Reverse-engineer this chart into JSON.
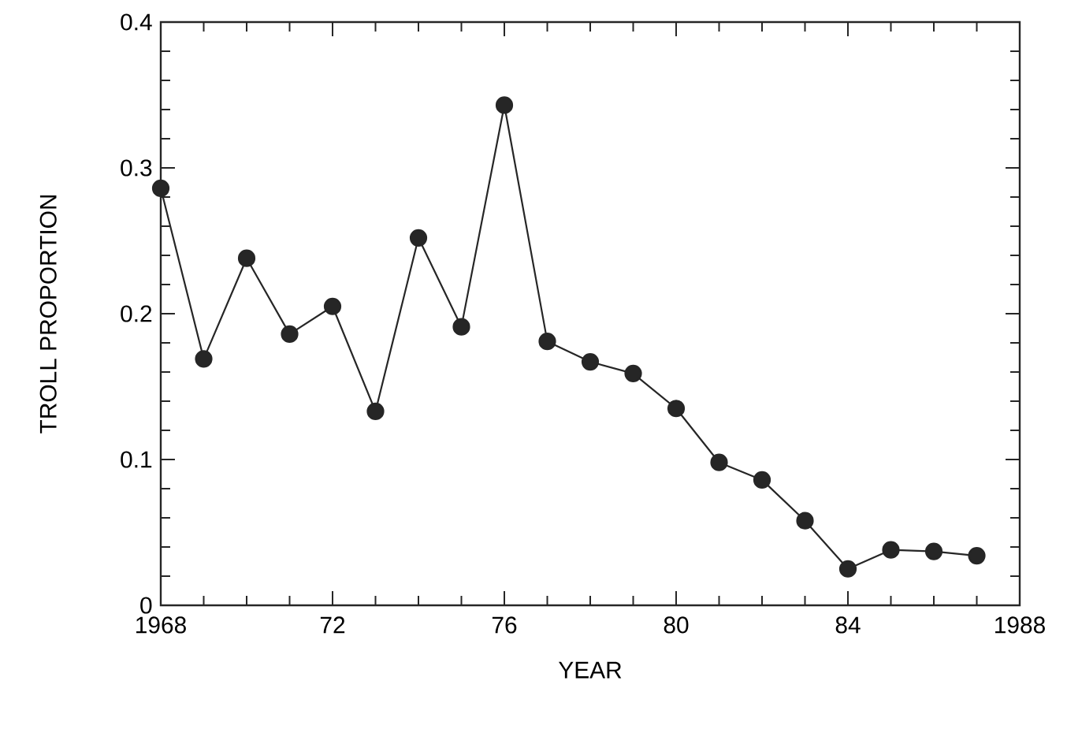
{
  "chart_data": {
    "type": "line",
    "xlabel": "YEAR",
    "ylabel": "TROLL PROPORTION",
    "x": [
      1968,
      1969,
      1970,
      1971,
      1972,
      1973,
      1974,
      1975,
      1976,
      1977,
      1978,
      1979,
      1980,
      1981,
      1982,
      1983,
      1984,
      1985,
      1986,
      1987
    ],
    "series": [
      {
        "color": "#262626",
        "values": [
          0.286,
          0.169,
          0.238,
          0.186,
          0.205,
          0.133,
          0.252,
          0.191,
          0.343,
          0.181,
          0.167,
          0.159,
          0.135,
          0.098,
          0.086,
          0.058,
          0.025,
          0.038,
          0.037,
          0.034
        ]
      }
    ],
    "xlim": [
      1968,
      1988
    ],
    "ylim": [
      0,
      0.4
    ],
    "xticks": [
      1968,
      {
        "value": 1972,
        "label": "72"
      },
      {
        "value": 1976,
        "label": "76"
      },
      {
        "value": 1980,
        "label": "80"
      },
      {
        "value": 1984,
        "label": "84"
      },
      1988
    ],
    "yticks": [
      0,
      0.1,
      0.2,
      0.3,
      0.4
    ],
    "marker": "circle",
    "line_style": "solid"
  }
}
